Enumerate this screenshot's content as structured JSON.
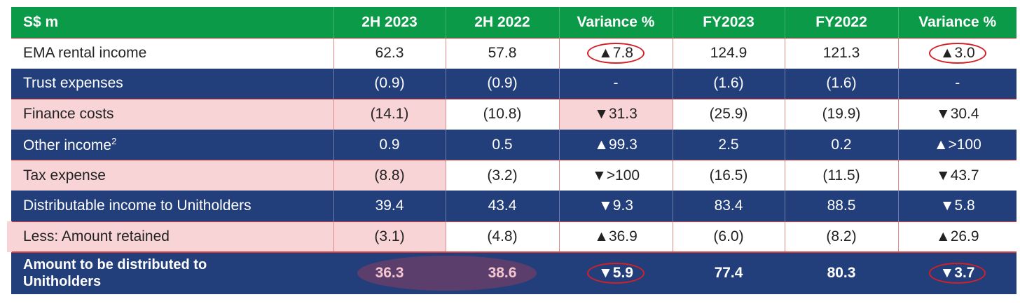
{
  "header": [
    "S$ m",
    "2H 2023",
    "2H 2022",
    "Variance %",
    "FY2023",
    "FY2022",
    "Variance %"
  ],
  "rows": [
    {
      "label": "EMA rental income",
      "v": [
        "62.3",
        "57.8",
        "▲7.8",
        "124.9",
        "121.3",
        "▲3.0"
      ]
    },
    {
      "label": "Trust expenses",
      "v": [
        "(0.9)",
        "(0.9)",
        "-",
        "(1.6)",
        "(1.6)",
        "-"
      ]
    },
    {
      "label": "Finance costs",
      "v": [
        "(14.1)",
        "(10.8)",
        "▼31.3",
        "(25.9)",
        "(19.9)",
        "▼30.4"
      ]
    },
    {
      "label": "Other income",
      "sup": "2",
      "v": [
        "0.9",
        "0.5",
        "▲99.3",
        "2.5",
        "0.2",
        "▲>100"
      ]
    },
    {
      "label": "Tax expense",
      "v": [
        "(8.8)",
        "(3.2)",
        "▼>100",
        "(16.5)",
        "(11.5)",
        "▼43.7"
      ]
    },
    {
      "label": "Distributable income to Unitholders",
      "v": [
        "39.4",
        "43.4",
        "▼9.3",
        "83.4",
        "88.5",
        "▼5.8"
      ]
    },
    {
      "label": "Less: Amount retained",
      "v": [
        "(3.1)",
        "(4.8)",
        "▲36.9",
        "(6.0)",
        "(8.2)",
        "▲26.9"
      ]
    }
  ],
  "total": {
    "label_line1": "Amount to be distributed to",
    "label_line2": "Unitholders",
    "v": [
      "36.3",
      "38.6",
      "▼5.9",
      "77.4",
      "80.3",
      "▼3.7"
    ]
  },
  "colors": {
    "header_green": "#0b9a48",
    "dark_row": "#233f7b",
    "highlight_pink": "#f8d4d6",
    "circle_red": "#d32027"
  }
}
